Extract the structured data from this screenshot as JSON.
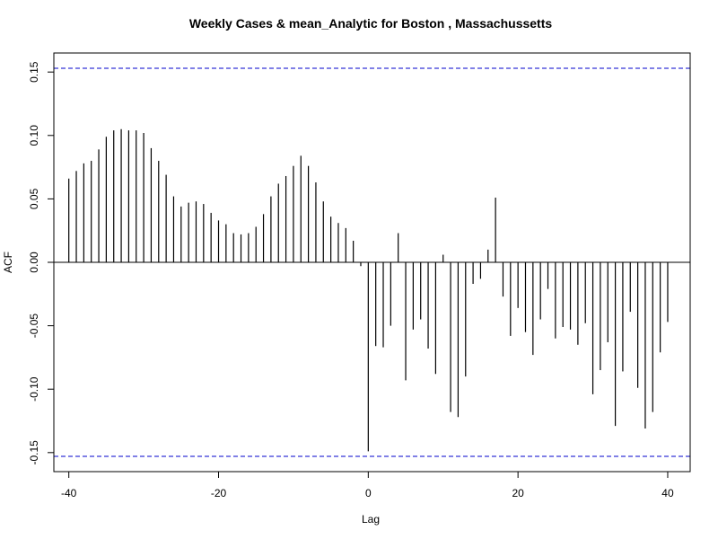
{
  "chart_data": {
    "type": "bar",
    "title": "Weekly Cases & mean_Analytic for Boston , Massachussetts",
    "xlabel": "Lag",
    "ylabel": "ACF",
    "xlim": [
      -42,
      43
    ],
    "ylim": [
      -0.165,
      0.165
    ],
    "x_ticks": [
      -40,
      -20,
      0,
      20,
      40
    ],
    "x_tick_labels": [
      "-40",
      "-20",
      "0",
      "20",
      "40"
    ],
    "y_ticks": [
      -0.15,
      -0.1,
      -0.05,
      0.0,
      0.05,
      0.1,
      0.15
    ],
    "y_tick_labels": [
      "-0.15",
      "-0.10",
      "-0.05",
      "0.00",
      "0.05",
      "0.10",
      "0.15"
    ],
    "confidence_bounds": [
      0.153,
      -0.153
    ],
    "colors": {
      "bars": "#000000",
      "confidence": "#0000cc",
      "zero_line": "#000000"
    },
    "x": [
      -40,
      -39,
      -38,
      -37,
      -36,
      -35,
      -34,
      -33,
      -32,
      -31,
      -30,
      -29,
      -28,
      -27,
      -26,
      -25,
      -24,
      -23,
      -22,
      -21,
      -20,
      -19,
      -18,
      -17,
      -16,
      -15,
      -14,
      -13,
      -12,
      -11,
      -10,
      -9,
      -8,
      -7,
      -6,
      -5,
      -4,
      -3,
      -2,
      -1,
      0,
      1,
      2,
      3,
      4,
      5,
      6,
      7,
      8,
      9,
      10,
      11,
      12,
      13,
      14,
      15,
      16,
      17,
      18,
      19,
      20,
      21,
      22,
      23,
      24,
      25,
      26,
      27,
      28,
      29,
      30,
      31,
      32,
      33,
      34,
      35,
      36,
      37,
      38,
      39,
      40
    ],
    "values": [
      0.066,
      0.072,
      0.078,
      0.08,
      0.089,
      0.099,
      0.104,
      0.105,
      0.104,
      0.104,
      0.102,
      0.09,
      0.08,
      0.069,
      0.052,
      0.044,
      0.047,
      0.048,
      0.046,
      0.039,
      0.033,
      0.03,
      0.023,
      0.022,
      0.023,
      0.028,
      0.038,
      0.052,
      0.062,
      0.068,
      0.076,
      0.084,
      0.076,
      0.063,
      0.048,
      0.036,
      0.031,
      0.027,
      0.017,
      -0.003,
      -0.149,
      -0.066,
      -0.067,
      -0.05,
      0.023,
      -0.093,
      -0.053,
      -0.045,
      -0.068,
      -0.088,
      0.006,
      -0.118,
      -0.122,
      -0.09,
      -0.017,
      -0.013,
      0.01,
      0.051,
      -0.027,
      -0.058,
      -0.036,
      -0.055,
      -0.073,
      -0.045,
      -0.021,
      -0.06,
      -0.051,
      -0.053,
      -0.065,
      -0.048,
      -0.104,
      -0.085,
      -0.063,
      -0.129,
      -0.086,
      -0.039,
      -0.099,
      -0.131,
      -0.118,
      -0.071,
      -0.047
    ]
  }
}
